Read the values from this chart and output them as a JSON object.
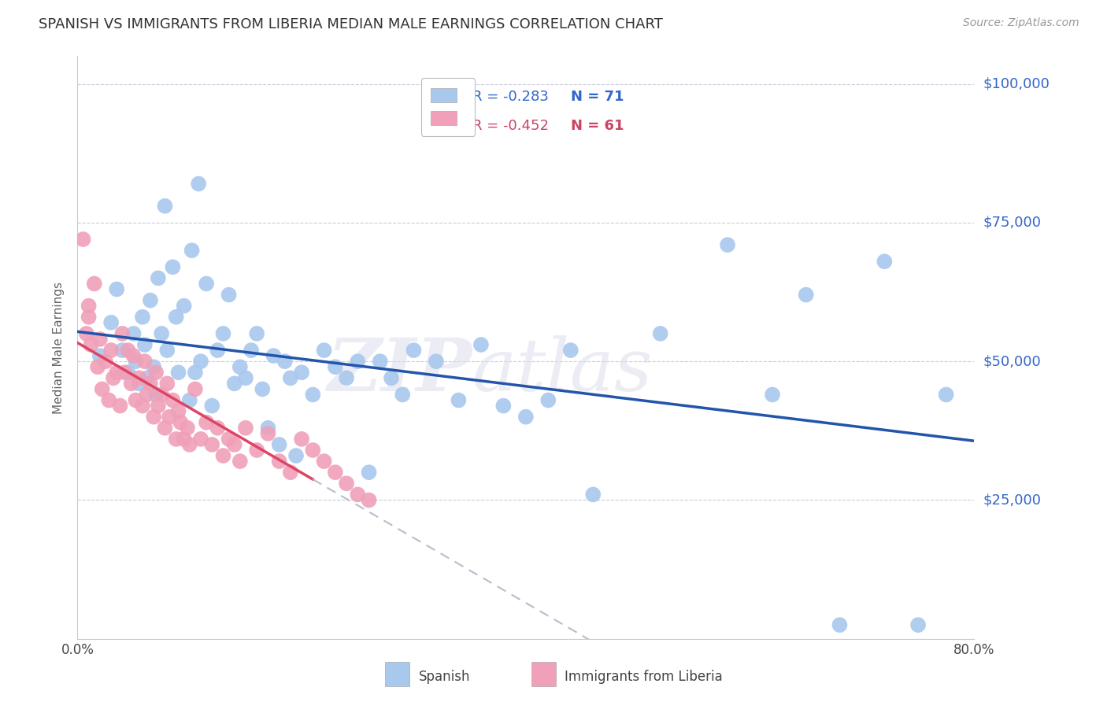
{
  "title": "SPANISH VS IMMIGRANTS FROM LIBERIA MEDIAN MALE EARNINGS CORRELATION CHART",
  "source": "Source: ZipAtlas.com",
  "ylabel": "Median Male Earnings",
  "y_ticks": [
    0,
    25000,
    50000,
    75000,
    100000
  ],
  "y_tick_labels": [
    "",
    "$25,000",
    "$50,000",
    "$75,000",
    "$100,000"
  ],
  "x_min": 0.0,
  "x_max": 0.8,
  "y_min": 0,
  "y_max": 105000,
  "legend_blue_r": "R = -0.283",
  "legend_blue_n": "N = 71",
  "legend_pink_r": "R = -0.452",
  "legend_pink_n": "N = 61",
  "legend_blue_label": "Spanish",
  "legend_pink_label": "Immigrants from Liberia",
  "blue_color": "#A8C8EE",
  "pink_color": "#F0A0B8",
  "trendline_blue_color": "#2255AA",
  "trendline_pink_color": "#DD4466",
  "trendline_pink_dashed_color": "#BBBBCC",
  "watermark_zip": "ZIP",
  "watermark_atlas": "atlas",
  "blue_scatter_x": [
    0.02,
    0.03,
    0.035,
    0.04,
    0.045,
    0.05,
    0.052,
    0.055,
    0.058,
    0.06,
    0.062,
    0.065,
    0.068,
    0.07,
    0.072,
    0.075,
    0.078,
    0.08,
    0.085,
    0.088,
    0.09,
    0.095,
    0.1,
    0.102,
    0.105,
    0.108,
    0.11,
    0.115,
    0.12,
    0.125,
    0.13,
    0.135,
    0.14,
    0.145,
    0.15,
    0.155,
    0.16,
    0.165,
    0.17,
    0.175,
    0.18,
    0.185,
    0.19,
    0.195,
    0.2,
    0.21,
    0.22,
    0.23,
    0.24,
    0.25,
    0.26,
    0.27,
    0.28,
    0.29,
    0.3,
    0.32,
    0.34,
    0.36,
    0.38,
    0.4,
    0.42,
    0.44,
    0.46,
    0.52,
    0.58,
    0.62,
    0.65,
    0.68,
    0.72,
    0.75,
    0.775
  ],
  "blue_scatter_y": [
    51000,
    57000,
    63000,
    52000,
    48000,
    55000,
    50000,
    46000,
    58000,
    53000,
    47000,
    61000,
    49000,
    44000,
    65000,
    55000,
    78000,
    52000,
    67000,
    58000,
    48000,
    60000,
    43000,
    70000,
    48000,
    82000,
    50000,
    64000,
    42000,
    52000,
    55000,
    62000,
    46000,
    49000,
    47000,
    52000,
    55000,
    45000,
    38000,
    51000,
    35000,
    50000,
    47000,
    33000,
    48000,
    44000,
    52000,
    49000,
    47000,
    50000,
    30000,
    50000,
    47000,
    44000,
    52000,
    50000,
    43000,
    53000,
    42000,
    40000,
    43000,
    52000,
    26000,
    55000,
    71000,
    44000,
    62000,
    2500,
    68000,
    2500,
    44000
  ],
  "pink_scatter_x": [
    0.005,
    0.008,
    0.01,
    0.01,
    0.012,
    0.015,
    0.018,
    0.02,
    0.022,
    0.025,
    0.028,
    0.03,
    0.032,
    0.035,
    0.038,
    0.04,
    0.042,
    0.045,
    0.048,
    0.05,
    0.052,
    0.055,
    0.058,
    0.06,
    0.062,
    0.065,
    0.068,
    0.07,
    0.072,
    0.075,
    0.078,
    0.08,
    0.082,
    0.085,
    0.088,
    0.09,
    0.092,
    0.095,
    0.098,
    0.1,
    0.105,
    0.11,
    0.115,
    0.12,
    0.125,
    0.13,
    0.135,
    0.14,
    0.145,
    0.15,
    0.16,
    0.17,
    0.18,
    0.19,
    0.2,
    0.21,
    0.22,
    0.23,
    0.24,
    0.25,
    0.26
  ],
  "pink_scatter_y": [
    72000,
    55000,
    60000,
    58000,
    53000,
    64000,
    49000,
    54000,
    45000,
    50000,
    43000,
    52000,
    47000,
    48000,
    42000,
    55000,
    48000,
    52000,
    46000,
    51000,
    43000,
    47000,
    42000,
    50000,
    44000,
    46000,
    40000,
    48000,
    42000,
    44000,
    38000,
    46000,
    40000,
    43000,
    36000,
    41000,
    39000,
    36000,
    38000,
    35000,
    45000,
    36000,
    39000,
    35000,
    38000,
    33000,
    36000,
    35000,
    32000,
    38000,
    34000,
    37000,
    32000,
    30000,
    36000,
    34000,
    32000,
    30000,
    28000,
    26000,
    25000
  ]
}
